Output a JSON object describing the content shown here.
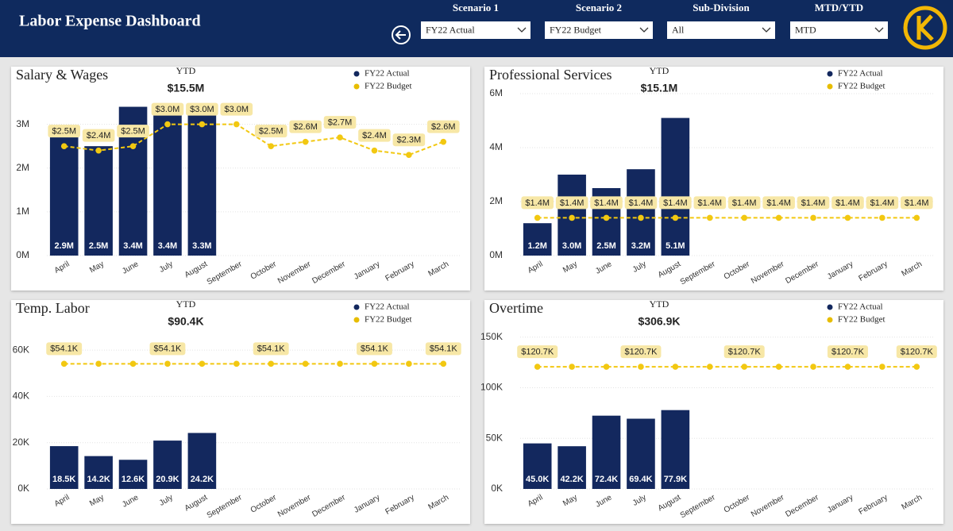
{
  "header": {
    "title": "Labor Expense Dashboard"
  },
  "filters": [
    {
      "label": "Scenario 1",
      "value": "FY22 Actual"
    },
    {
      "label": "Scenario 2",
      "value": "FY22 Budget"
    },
    {
      "label": "Sub-Division",
      "value": "All"
    },
    {
      "label": "MTD/YTD",
      "value": "MTD"
    }
  ],
  "chart_data": [
    {
      "type": "combo",
      "title": "Salary & Wages",
      "subtitle": "YTD",
      "kpi": "$15.5M",
      "categories": [
        "April",
        "May",
        "June",
        "July",
        "August",
        "September",
        "October",
        "November",
        "December",
        "January",
        "February",
        "March"
      ],
      "ylim": [
        0,
        3700000
      ],
      "yticks": [
        {
          "value": 0,
          "label": "0M"
        },
        {
          "value": 1000000,
          "label": "1M"
        },
        {
          "value": 2000000,
          "label": "2M"
        },
        {
          "value": 3000000,
          "label": "3M"
        }
      ],
      "series": [
        {
          "name": "FY22 Actual",
          "type": "bar",
          "color": "#13285e",
          "values": [
            2900000,
            2500000,
            3400000,
            3400000,
            3300000,
            null,
            null,
            null,
            null,
            null,
            null,
            null
          ],
          "value_labels": [
            "2.9M",
            "2.5M",
            "3.4M",
            "3.4M",
            "3.3M",
            null,
            null,
            null,
            null,
            null,
            null,
            null
          ]
        },
        {
          "name": "FY22 Budget",
          "type": "line",
          "color": "#f2c811",
          "values": [
            2500000,
            2400000,
            2500000,
            3000000,
            3000000,
            3000000,
            2500000,
            2600000,
            2700000,
            2400000,
            2300000,
            2600000
          ],
          "value_labels": [
            "$2.5M",
            "$2.4M",
            "$2.5M",
            "$3.0M",
            "$3.0M",
            "$3.0M",
            "$2.5M",
            "$2.6M",
            "$2.7M",
            "$2.4M",
            "$2.3M",
            "$2.6M"
          ]
        }
      ]
    },
    {
      "type": "combo",
      "title": "Professional Services",
      "subtitle": "YTD",
      "kpi": "$15.1M",
      "categories": [
        "April",
        "May",
        "June",
        "July",
        "August",
        "September",
        "October",
        "November",
        "December",
        "January",
        "February",
        "March"
      ],
      "ylim": [
        0,
        6000000
      ],
      "yticks": [
        {
          "value": 0,
          "label": "0M"
        },
        {
          "value": 2000000,
          "label": "2M"
        },
        {
          "value": 4000000,
          "label": "4M"
        },
        {
          "value": 6000000,
          "label": "6M"
        }
      ],
      "series": [
        {
          "name": "FY22 Actual",
          "type": "bar",
          "color": "#13285e",
          "values": [
            1200000,
            3000000,
            2500000,
            3200000,
            5100000,
            null,
            null,
            null,
            null,
            null,
            null,
            null
          ],
          "value_labels": [
            "1.2M",
            "3.0M",
            "2.5M",
            "3.2M",
            "5.1M",
            null,
            null,
            null,
            null,
            null,
            null,
            null
          ]
        },
        {
          "name": "FY22 Budget",
          "type": "line",
          "color": "#f2c811",
          "values": [
            1400000,
            1400000,
            1400000,
            1400000,
            1400000,
            1400000,
            1400000,
            1400000,
            1400000,
            1400000,
            1400000,
            1400000
          ],
          "value_labels": [
            "$1.4M",
            "$1.4M",
            "$1.4M",
            "$1.4M",
            "$1.4M",
            "$1.4M",
            "$1.4M",
            "$1.4M",
            "$1.4M",
            "$1.4M",
            "$1.4M",
            "$1.4M"
          ]
        }
      ]
    },
    {
      "type": "combo",
      "title": "Temp. Labor",
      "subtitle": "YTD",
      "kpi": "$90.4K",
      "categories": [
        "April",
        "May",
        "June",
        "July",
        "August",
        "September",
        "October",
        "November",
        "December",
        "January",
        "February",
        "March"
      ],
      "ylim": [
        0,
        70000
      ],
      "yticks": [
        {
          "value": 0,
          "label": "0K"
        },
        {
          "value": 20000,
          "label": "20K"
        },
        {
          "value": 40000,
          "label": "40K"
        },
        {
          "value": 60000,
          "label": "60K"
        }
      ],
      "series": [
        {
          "name": "FY22 Actual",
          "type": "bar",
          "color": "#13285e",
          "values": [
            18500,
            14200,
            12600,
            20900,
            24200,
            null,
            null,
            null,
            null,
            null,
            null,
            null
          ],
          "value_labels": [
            "18.5K",
            "14.2K",
            "12.6K",
            "20.9K",
            "24.2K",
            null,
            null,
            null,
            null,
            null,
            null,
            null
          ]
        },
        {
          "name": "FY22 Budget",
          "type": "line",
          "color": "#f2c811",
          "values": [
            54100,
            54100,
            54100,
            54100,
            54100,
            54100,
            54100,
            54100,
            54100,
            54100,
            54100,
            54100
          ],
          "value_labels": [
            "$54.1K",
            null,
            null,
            "$54.1K",
            null,
            null,
            "$54.1K",
            null,
            null,
            "$54.1K",
            null,
            "$54.1K"
          ]
        }
      ]
    },
    {
      "type": "combo",
      "title": "Overtime",
      "subtitle": "YTD",
      "kpi": "$306.9K",
      "categories": [
        "April",
        "May",
        "June",
        "July",
        "August",
        "September",
        "October",
        "November",
        "December",
        "January",
        "February",
        "March"
      ],
      "ylim": [
        0,
        160000
      ],
      "yticks": [
        {
          "value": 0,
          "label": "0K"
        },
        {
          "value": 50000,
          "label": "50K"
        },
        {
          "value": 100000,
          "label": "100K"
        },
        {
          "value": 150000,
          "label": "150K"
        }
      ],
      "series": [
        {
          "name": "FY22 Actual",
          "type": "bar",
          "color": "#13285e",
          "values": [
            45000,
            42200,
            72400,
            69400,
            77900,
            null,
            null,
            null,
            null,
            null,
            null,
            null
          ],
          "value_labels": [
            "45.0K",
            "42.2K",
            "72.4K",
            "69.4K",
            "77.9K",
            null,
            null,
            null,
            null,
            null,
            null,
            null
          ]
        },
        {
          "name": "FY22 Budget",
          "type": "line",
          "color": "#f2c811",
          "values": [
            120700,
            120700,
            120700,
            120700,
            120700,
            120700,
            120700,
            120700,
            120700,
            120700,
            120700,
            120700
          ],
          "value_labels": [
            "$120.7K",
            null,
            null,
            "$120.7K",
            null,
            null,
            "$120.7K",
            null,
            null,
            "$120.7K",
            null,
            "$120.7K"
          ]
        }
      ]
    }
  ]
}
